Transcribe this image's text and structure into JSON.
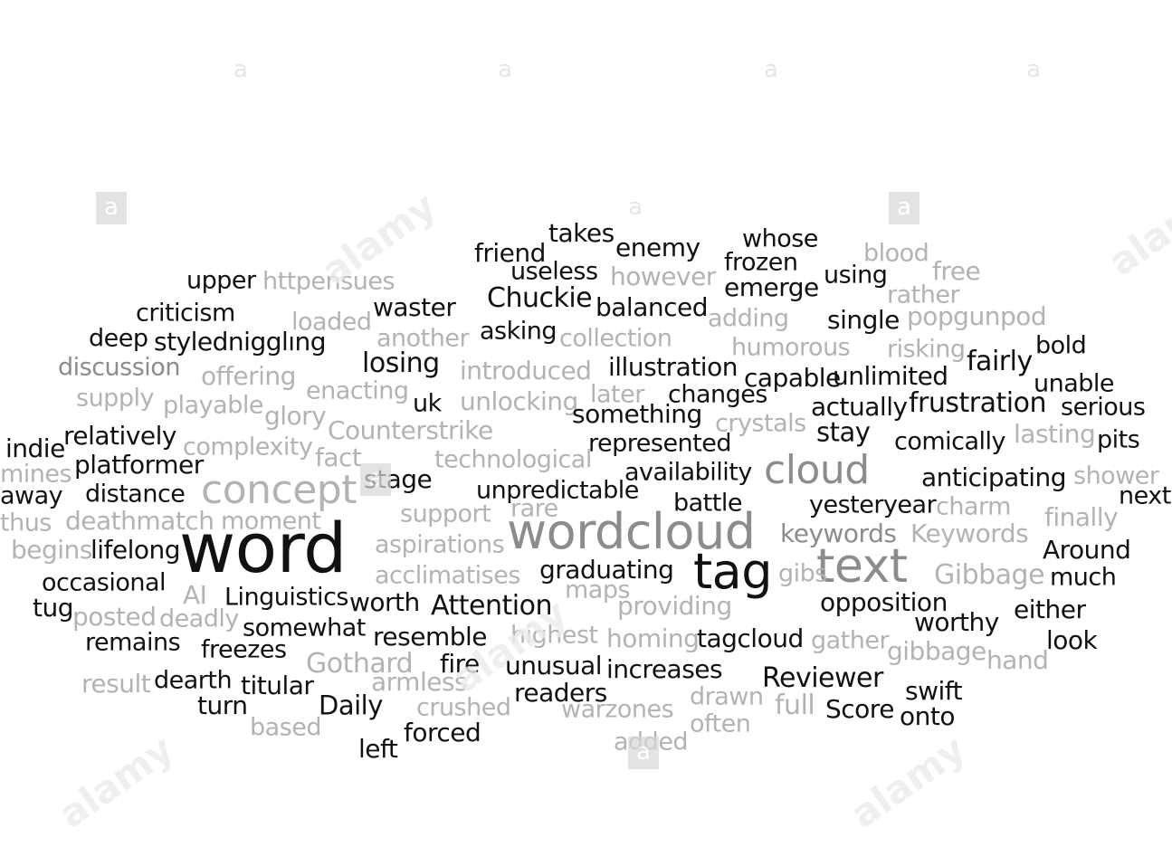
{
  "watermark": {
    "letter": "a",
    "brand": "alamy"
  },
  "words": [
    "upper",
    "httpensues",
    "criticism",
    "loaded",
    "waster",
    "deep",
    "stylednigglıng",
    "another",
    "discussion",
    "offering",
    "supply",
    "enacting",
    "playable",
    "glory",
    "uk",
    "relatively",
    "indie",
    "complexity",
    "fact",
    "platformer",
    "stage",
    "mines",
    "distance",
    "concept",
    "away",
    "thus",
    "deathmatch",
    "moment",
    "begins",
    "lifelong",
    "word",
    "occasional",
    "AI",
    "Linguistics",
    "tug",
    "posted",
    "deadly",
    "somewhat",
    "remains",
    "freezes",
    "resemble",
    "Gothard",
    "result",
    "dearth",
    "titular",
    "armless",
    "turn",
    "Daily",
    "based",
    "crushed",
    "left",
    "forced",
    "worth",
    "Attention",
    "Counterstrike",
    "technological",
    "support",
    "aspirations",
    "acclimatises",
    "friend",
    "takes",
    "enemy",
    "whose",
    "blood",
    "useless",
    "however",
    "frozen",
    "free",
    "Chuckie",
    "emerge",
    "using",
    "rather",
    "balanced",
    "adding",
    "asking",
    "collection",
    "single",
    "popgunpod",
    "losing",
    "humorous",
    "risking",
    "bold",
    "introduced",
    "illustration",
    "fairly",
    "capable",
    "unlimited",
    "unable",
    "unlocking",
    "later",
    "changes",
    "something",
    "actually",
    "frustration",
    "serious",
    "crystals",
    "stay",
    "lasting",
    "represented",
    "comically",
    "pits",
    "availability",
    "cloud",
    "anticipating",
    "shower",
    "unpredictable",
    "next",
    "rare",
    "battle",
    "yesteryear",
    "charm",
    "finally",
    "wordcloud",
    "keywords",
    "Keywords",
    "Around",
    "graduating",
    "tag",
    "text",
    "gibs",
    "Gibbage",
    "much",
    "maps",
    "providing",
    "opposition",
    "either",
    "highest",
    "worthy",
    "homing",
    "tagcloud",
    "gather",
    "look",
    "gibbage",
    "hand",
    "fire",
    "unusual",
    "increases",
    "Reviewer",
    "readers",
    "drawn",
    "swift",
    "warzones",
    "full",
    "Score",
    "often",
    "onto",
    "added"
  ]
}
